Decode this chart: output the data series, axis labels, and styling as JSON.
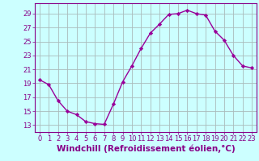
{
  "x": [
    0,
    1,
    2,
    3,
    4,
    5,
    6,
    7,
    8,
    9,
    10,
    11,
    12,
    13,
    14,
    15,
    16,
    17,
    18,
    19,
    20,
    21,
    22,
    23
  ],
  "y": [
    19.5,
    18.8,
    16.5,
    15.0,
    14.5,
    13.5,
    13.2,
    13.1,
    16.0,
    19.2,
    21.5,
    24.0,
    26.2,
    27.5,
    28.9,
    29.0,
    29.5,
    29.0,
    28.8,
    26.5,
    25.2,
    23.0,
    21.5,
    21.2
  ],
  "line_color": "#990099",
  "marker": "D",
  "marker_size": 2.2,
  "bg_color": "#ccffff",
  "grid_color": "#aabbbb",
  "xlabel": "Windchill (Refroidissement éolien,°C)",
  "ylim": [
    12,
    30.5
  ],
  "yticks": [
    13,
    15,
    17,
    19,
    21,
    23,
    25,
    27,
    29
  ],
  "xticks": [
    0,
    1,
    2,
    3,
    4,
    5,
    6,
    7,
    8,
    9,
    10,
    11,
    12,
    13,
    14,
    15,
    16,
    17,
    18,
    19,
    20,
    21,
    22,
    23
  ],
  "tick_color": "#880088",
  "label_fontsize": 7.5,
  "tick_fontsize": 6.0,
  "xlabel_fontsize": 7.5,
  "linewidth": 1.0
}
